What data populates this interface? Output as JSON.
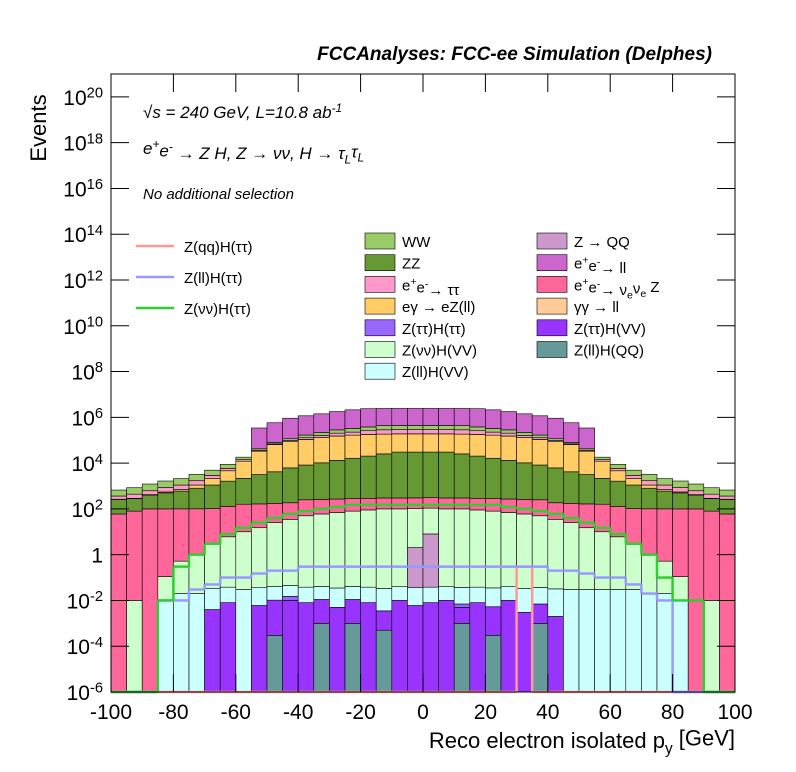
{
  "chart_data": {
    "type": "stacked_histogram",
    "title": "FCCAnalyses: FCC-ee Simulation (Delphes)",
    "x_label": "Reco electron isolated p_{y} [GeV]",
    "y_label": "Events",
    "annotations": [
      "√s = 240 GeV, L=10.8 ab^{-1}",
      "e^{+}e^{-} → Z H, Z → νν, H → τ_{L}τ_{L}",
      "No additional selection"
    ],
    "log_y": true,
    "xlim": [
      -100,
      100
    ],
    "xticks": [
      -100,
      -80,
      -60,
      -40,
      -20,
      0,
      20,
      40,
      60,
      80,
      100
    ],
    "ylim": [
      1e-06,
      1e+21
    ],
    "yticks": [
      {
        "value": 1e-06,
        "label": "10^{-6}"
      },
      {
        "value": 0.0001,
        "label": "10^{-4}"
      },
      {
        "value": 0.01,
        "label": "10^{-2}"
      },
      1,
      {
        "value": 100,
        "label": "10^{2}"
      },
      {
        "value": 10000.0,
        "label": "10^{4}"
      },
      {
        "value": 1000000.0,
        "label": "10^{6}"
      },
      {
        "value": 100000000.0,
        "label": "10^{8}"
      },
      {
        "value": 10000000000.0,
        "label": "10^{10}"
      },
      {
        "value": 1000000000000.0,
        "label": "10^{12}"
      },
      {
        "value": 100000000000000.0,
        "label": "10^{14}"
      },
      {
        "value": 1e+16,
        "label": "10^{16}"
      },
      {
        "value": 1e+18,
        "label": "10^{18}"
      },
      {
        "value": 1e+20,
        "label": "10^{20}"
      }
    ],
    "bins": [
      -100,
      -95,
      -90,
      -85,
      -80,
      -75,
      -70,
      -65,
      -60,
      -55,
      -50,
      -45,
      -40,
      -35,
      -30,
      -25,
      -20,
      -15,
      -10,
      -5,
      0,
      5,
      10,
      15,
      20,
      25,
      30,
      35,
      40,
      45,
      50,
      55,
      60,
      65,
      70,
      75,
      80,
      85,
      90,
      95,
      100
    ],
    "series": [
      {
        "name": "WW",
        "color": "#99cc66",
        "values": [
          300,
          400,
          600,
          800,
          1000,
          1500,
          2000,
          3000,
          4000,
          6000,
          10000,
          20000,
          40000,
          60000,
          80000,
          100000,
          120000,
          150000,
          150000,
          150000,
          150000,
          150000,
          150000,
          120000,
          100000,
          80000,
          60000,
          40000,
          20000,
          10000,
          6000,
          4000,
          3000,
          2000,
          1500,
          1000,
          800,
          600,
          400,
          300
        ]
      },
      {
        "name": "Z → QQ",
        "color": "#cc99cc",
        "values": [
          0,
          0,
          0,
          0,
          0,
          0,
          0,
          0,
          0,
          0,
          0,
          0,
          0,
          0,
          0,
          0,
          0,
          0,
          0,
          2,
          8,
          0,
          0,
          0,
          0,
          0,
          0,
          0,
          0,
          0,
          0,
          0,
          0,
          0,
          0,
          0,
          0,
          0,
          0,
          0
        ]
      },
      {
        "name": "ZZ",
        "color": "#669933",
        "values": [
          200,
          200,
          300,
          400,
          500,
          700,
          1000,
          1500,
          2000,
          3000,
          4000,
          6000,
          8000,
          10000,
          13000,
          16000,
          20000,
          25000,
          30000,
          30000,
          30000,
          30000,
          25000,
          20000,
          16000,
          13000,
          10000,
          8000,
          6000,
          4000,
          3000,
          2000,
          1500,
          1000,
          700,
          500,
          400,
          300,
          200,
          200
        ]
      },
      {
        "name": "e^{+}e^{-}→ ll",
        "color": "#cc66cc",
        "values": [
          0,
          0,
          0,
          0,
          0,
          0,
          0,
          0,
          0,
          300000,
          500000,
          800000,
          1000000,
          1200000,
          1500000,
          1800000,
          2000000,
          2000000,
          2000000,
          2000000,
          2000000,
          2000000,
          2000000,
          2000000,
          1800000,
          1500000,
          1200000,
          1000000,
          800000,
          500000,
          300000,
          0,
          0,
          0,
          0,
          0,
          0,
          0,
          0,
          0
        ]
      },
      {
        "name": "e^{+}e^{-}→ ττ",
        "color": "#ff99cc",
        "values": [
          100,
          150,
          200,
          300,
          400,
          600,
          800,
          1200,
          2000,
          3000,
          5000,
          10000,
          20000,
          30000,
          50000,
          60000,
          80000,
          100000,
          100000,
          100000,
          100000,
          100000,
          100000,
          80000,
          60000,
          50000,
          30000,
          20000,
          10000,
          5000,
          3000,
          2000,
          1200,
          800,
          600,
          400,
          300,
          200,
          150,
          100
        ]
      },
      {
        "name": "e^{+}e^{-}→ ν_{e}ν_{e} Z",
        "color": "#ff6699",
        "values": [
          60,
          80,
          100,
          100,
          100,
          100,
          100,
          120,
          150,
          150,
          150,
          150,
          200,
          200,
          200,
          200,
          200,
          200,
          200,
          200,
          200,
          200,
          200,
          200,
          200,
          200,
          200,
          200,
          150,
          150,
          150,
          150,
          120,
          100,
          100,
          100,
          100,
          100,
          80,
          60
        ]
      },
      {
        "name": "eγ → eZ(ll)",
        "color": "#ffcc66",
        "values": [
          5,
          10,
          20,
          50,
          100,
          300,
          1000,
          3000,
          10000,
          30000,
          60000,
          80000,
          100000,
          120000,
          140000,
          150000,
          160000,
          160000,
          160000,
          160000,
          160000,
          160000,
          160000,
          160000,
          150000,
          140000,
          120000,
          100000,
          80000,
          60000,
          30000,
          10000,
          3000,
          1000,
          300,
          100,
          50,
          20,
          10,
          5
        ]
      },
      {
        "name": "γγ → ll",
        "color": "#ffcc99",
        "values": [
          0,
          0,
          0,
          0,
          0,
          0,
          0,
          0,
          1,
          1,
          2,
          2,
          3,
          3,
          3,
          3,
          3,
          3,
          3,
          3,
          3,
          3,
          3,
          3,
          3,
          3,
          3,
          3,
          2,
          2,
          1,
          1,
          0,
          0,
          0,
          0,
          0,
          0,
          0,
          0
        ]
      },
      {
        "name": "Z(ττ)H(ττ)",
        "color": "#9966ff",
        "values": [
          0,
          0,
          0,
          0,
          0,
          0,
          0,
          0,
          0,
          0,
          0,
          0.005,
          0,
          0,
          0,
          0,
          0,
          0,
          0,
          0,
          0,
          0,
          0.002,
          0,
          0,
          0,
          0,
          0,
          0,
          0,
          0,
          0,
          0,
          0,
          0,
          0,
          0,
          0,
          0,
          0
        ]
      },
      {
        "name": "Z(ττ)H(VV)",
        "color": "#9933ff",
        "values": [
          0,
          0,
          0,
          0,
          0,
          0,
          0.004,
          0.008,
          0,
          0.006,
          0.01,
          0.01,
          0.008,
          0.01,
          0.005,
          0.01,
          0.008,
          0.003,
          0.01,
          0.006,
          0.008,
          0.01,
          0.004,
          0.008,
          0.005,
          0.01,
          0.003,
          0.006,
          0.002,
          0,
          0,
          0,
          0,
          0,
          0,
          0,
          0,
          0,
          0,
          0
        ]
      },
      {
        "name": "Z(νν)H(VV)",
        "color": "#ccffcc",
        "values": [
          0,
          0.01,
          0,
          0.1,
          0.5,
          1,
          3,
          6,
          10,
          15,
          25,
          35,
          50,
          60,
          70,
          80,
          90,
          100,
          100,
          100,
          100,
          100,
          100,
          90,
          80,
          70,
          60,
          50,
          35,
          25,
          15,
          10,
          6,
          3,
          1,
          0.5,
          0.1,
          0,
          0.01,
          0
        ]
      },
      {
        "name": "Z(ll)H(QQ)",
        "color": "#669999",
        "values": [
          0,
          0,
          0,
          0,
          0,
          0,
          0,
          0,
          0,
          0,
          0.0003,
          0,
          0,
          0.001,
          0,
          0.001,
          0,
          0.0005,
          0,
          0,
          0,
          0,
          0.001,
          0,
          0.0003,
          0,
          0,
          0.001,
          0,
          0,
          0,
          0,
          0,
          0,
          0,
          0,
          0,
          0,
          0,
          0
        ]
      },
      {
        "name": "Z(ll)H(VV)",
        "color": "#ccffff",
        "values": [
          0,
          0,
          0,
          0.01,
          0.02,
          0.02,
          0.03,
          0.03,
          0.03,
          0.03,
          0.03,
          0.03,
          0.03,
          0.03,
          0.03,
          0.03,
          0.03,
          0.03,
          0.03,
          0.03,
          0.03,
          0.03,
          0.03,
          0.03,
          0.03,
          0.03,
          0.03,
          0.03,
          0.03,
          0.03,
          0.03,
          0.03,
          0.03,
          0.03,
          0.02,
          0.02,
          0.01,
          0,
          0,
          0
        ]
      }
    ],
    "lines": [
      {
        "name": "Z(qq)H(ττ)",
        "color": "#ff9999",
        "values": [
          0,
          0,
          0,
          0,
          0,
          0,
          0,
          0,
          0,
          0,
          0,
          0,
          0,
          0,
          0,
          0,
          0,
          0,
          0,
          0,
          0,
          0,
          0,
          0,
          0,
          0,
          0.3,
          0,
          0,
          0,
          0,
          0,
          0,
          0,
          0,
          0,
          0,
          0,
          0,
          0
        ]
      },
      {
        "name": "Z(ll)H(ττ)",
        "color": "#9999ff",
        "values": [
          0,
          0,
          0,
          0.01,
          0.01,
          0.03,
          0.05,
          0.1,
          0.1,
          0.15,
          0.2,
          0.2,
          0.3,
          0.3,
          0.3,
          0.3,
          0.3,
          0.3,
          0.3,
          0.3,
          0.3,
          0.3,
          0.3,
          0.3,
          0.3,
          0.3,
          0.3,
          0.3,
          0.2,
          0.2,
          0.15,
          0.1,
          0.1,
          0.05,
          0.02,
          0.01,
          0,
          0,
          0,
          0
        ]
      },
      {
        "name": "Z(νν)H(ττ)",
        "color": "#33cc33",
        "values": [
          0,
          0,
          0,
          0.01,
          0.3,
          1,
          3,
          8,
          15,
          25,
          40,
          60,
          80,
          100,
          120,
          150,
          150,
          150,
          150,
          150,
          150,
          150,
          150,
          150,
          150,
          120,
          100,
          80,
          60,
          40,
          25,
          15,
          8,
          3,
          1,
          0.1,
          0.01,
          0.01,
          0,
          0
        ]
      }
    ]
  }
}
